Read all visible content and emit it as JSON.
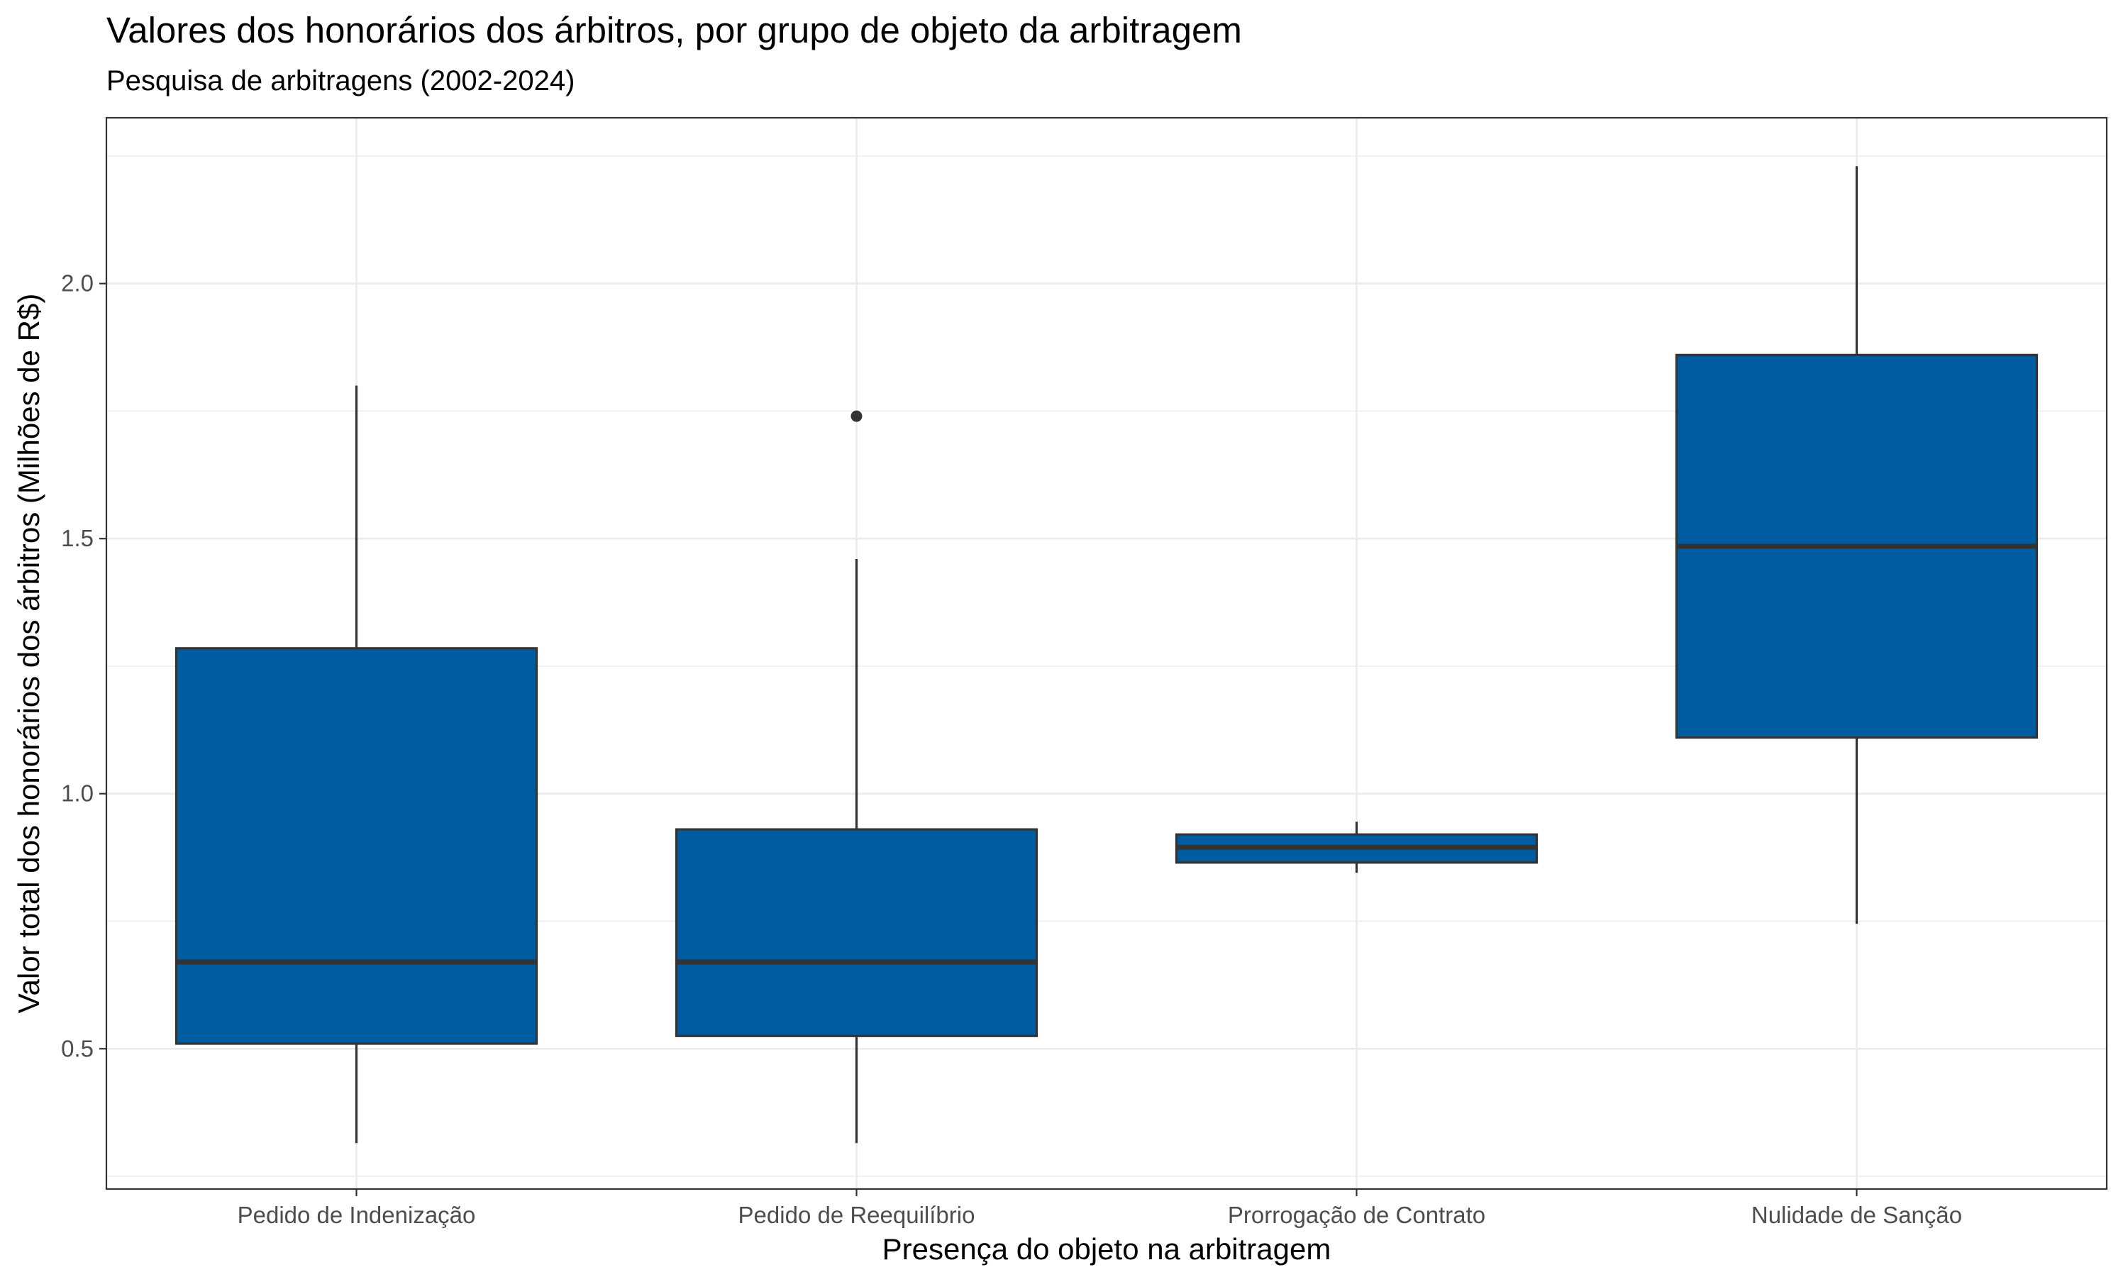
{
  "chart_data": {
    "type": "boxplot",
    "title": "Valores dos honorários dos árbitros, por grupo de objeto da arbitragem",
    "subtitle": "Pesquisa de arbitragens (2002-2024)",
    "xlabel": "Presença do objeto na arbitragem",
    "ylabel": "Valor total dos honorários dos árbitros (Milhões de R$)",
    "ylim": [
      0.225,
      2.325
    ],
    "yticks": [
      0.5,
      1.0,
      1.5,
      2.0
    ],
    "ytick_labels": [
      "0.5",
      "1.0",
      "1.5",
      "2.0"
    ],
    "grid": true,
    "fill_color": "#005ca0",
    "outline_color": "#333333",
    "categories": [
      "Pedido de Indenização",
      "Pedido de Reequilíbrio",
      "Prorrogação de Contrato",
      "Nulidade de Sanção"
    ],
    "boxes": [
      {
        "category": "Pedido de Indenização",
        "whisker_low": 0.315,
        "q1": 0.51,
        "median": 0.67,
        "q3": 1.285,
        "whisker_high": 1.8,
        "outliers": []
      },
      {
        "category": "Pedido de Reequilíbrio",
        "whisker_low": 0.315,
        "q1": 0.525,
        "median": 0.67,
        "q3": 0.93,
        "whisker_high": 1.46,
        "outliers": [
          1.74
        ]
      },
      {
        "category": "Prorrogação de Contrato",
        "whisker_low": 0.845,
        "q1": 0.865,
        "median": 0.895,
        "q3": 0.92,
        "whisker_high": 0.945,
        "outliers": []
      },
      {
        "category": "Nulidade de Sanção",
        "whisker_low": 0.745,
        "q1": 1.11,
        "median": 1.485,
        "q3": 1.86,
        "whisker_high": 2.23,
        "outliers": []
      }
    ]
  }
}
